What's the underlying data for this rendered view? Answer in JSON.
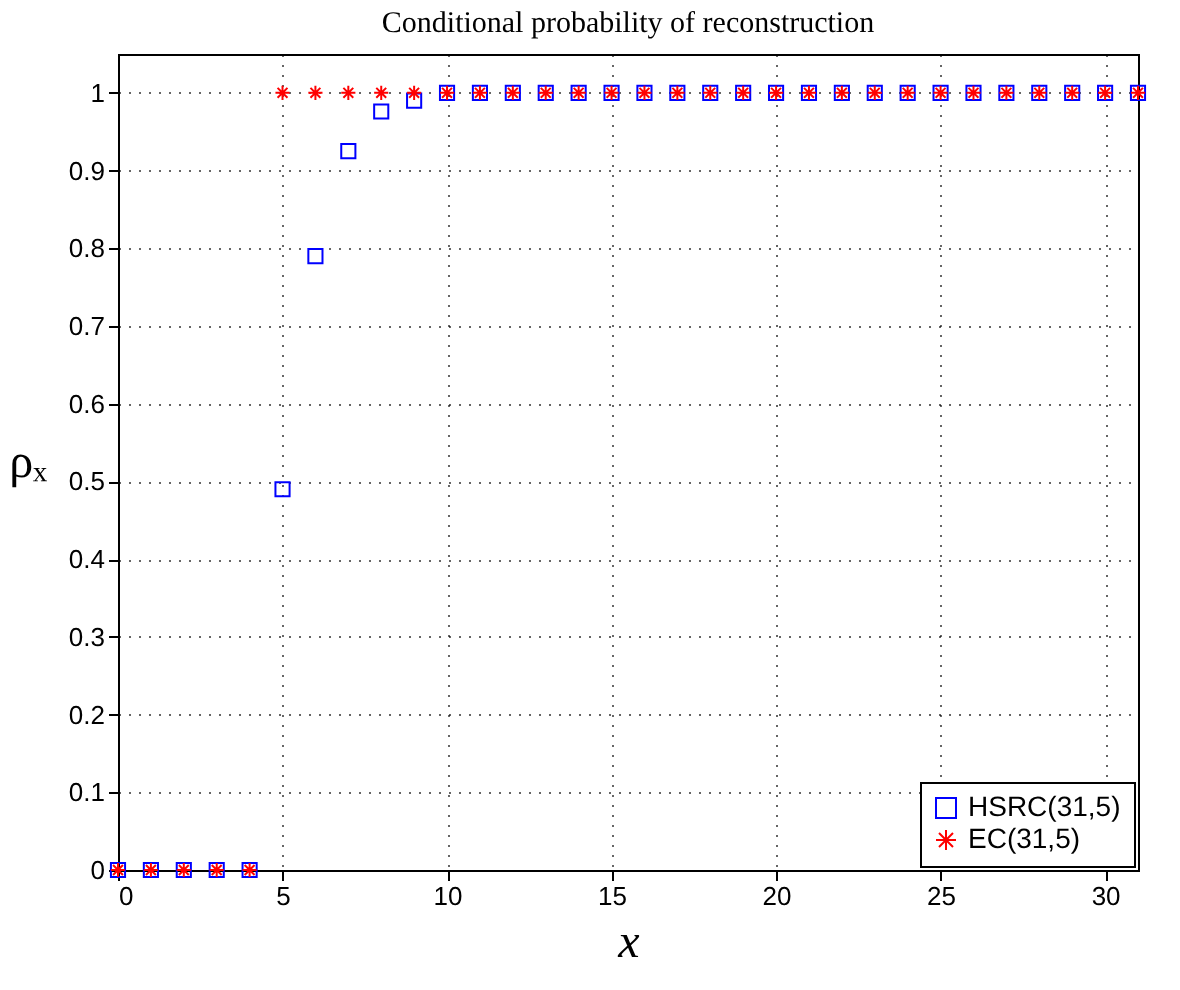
{
  "chart_data": {
    "type": "scatter",
    "title": "Conditional probability of reconstruction",
    "xlabel": "x",
    "ylabel": "ρₓ",
    "x": [
      0,
      1,
      2,
      3,
      4,
      5,
      6,
      7,
      8,
      9,
      10,
      11,
      12,
      13,
      14,
      15,
      16,
      17,
      18,
      19,
      20,
      21,
      22,
      23,
      24,
      25,
      26,
      27,
      28,
      29,
      30,
      31
    ],
    "series": [
      {
        "name": "HSRC(31,5)",
        "color": "#0000ff",
        "marker": "square",
        "values": [
          0,
          0,
          0,
          0,
          0,
          0.49,
          0.79,
          0.925,
          0.976,
          0.99,
          1,
          1,
          1,
          1,
          1,
          1,
          1,
          1,
          1,
          1,
          1,
          1,
          1,
          1,
          1,
          1,
          1,
          1,
          1,
          1,
          1,
          1
        ]
      },
      {
        "name": "EC(31,5)",
        "color": "#ff0000",
        "marker": "cross",
        "values": [
          0,
          0,
          0,
          0,
          0,
          1,
          1,
          1,
          1,
          1,
          1,
          1,
          1,
          1,
          1,
          1,
          1,
          1,
          1,
          1,
          1,
          1,
          1,
          1,
          1,
          1,
          1,
          1,
          1,
          1,
          1,
          1
        ]
      }
    ],
    "xlim": [
      0,
      31
    ],
    "xticks": [
      0,
      5,
      10,
      15,
      20,
      25,
      30
    ],
    "ylim": [
      0,
      1.05
    ],
    "yticks": [
      0,
      0.1,
      0.2,
      0.3,
      0.4,
      0.5,
      0.6,
      0.7,
      0.8,
      0.9,
      1
    ],
    "grid": true,
    "legend": "bottom right"
  }
}
